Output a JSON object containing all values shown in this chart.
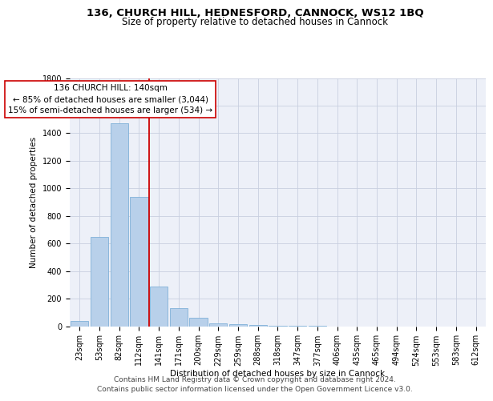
{
  "title": "136, CHURCH HILL, HEDNESFORD, CANNOCK, WS12 1BQ",
  "subtitle": "Size of property relative to detached houses in Cannock",
  "xlabel": "Distribution of detached houses by size in Cannock",
  "ylabel": "Number of detached properties",
  "bar_labels": [
    "23sqm",
    "53sqm",
    "82sqm",
    "112sqm",
    "141sqm",
    "171sqm",
    "200sqm",
    "229sqm",
    "259sqm",
    "288sqm",
    "318sqm",
    "347sqm",
    "377sqm",
    "406sqm",
    "435sqm",
    "465sqm",
    "494sqm",
    "524sqm",
    "553sqm",
    "583sqm",
    "612sqm"
  ],
  "bar_values": [
    38,
    648,
    1474,
    938,
    285,
    128,
    63,
    22,
    14,
    8,
    4,
    2,
    1,
    0,
    0,
    0,
    0,
    0,
    0,
    0,
    0
  ],
  "bar_color": "#b8d0ea",
  "bar_edge_color": "#6fa8d4",
  "vline_index": 4,
  "vline_color": "#cc0000",
  "annotation_line1": "136 CHURCH HILL: 140sqm",
  "annotation_line2": "← 85% of detached houses are smaller (3,044)",
  "annotation_line3": "15% of semi-detached houses are larger (534) →",
  "annotation_box_facecolor": "#ffffff",
  "annotation_box_edgecolor": "#cc0000",
  "ylim_max": 1800,
  "yticks": [
    0,
    200,
    400,
    600,
    800,
    1000,
    1200,
    1400,
    1600,
    1800
  ],
  "grid_color": "#c8cfe0",
  "background_color": "#edf0f8",
  "footer_line1": "Contains HM Land Registry data © Crown copyright and database right 2024.",
  "footer_line2": "Contains public sector information licensed under the Open Government Licence v3.0.",
  "title_fontsize": 9.5,
  "subtitle_fontsize": 8.5,
  "axis_label_fontsize": 7.5,
  "tick_fontsize": 7,
  "annotation_fontsize": 7.5,
  "footer_fontsize": 6.5
}
